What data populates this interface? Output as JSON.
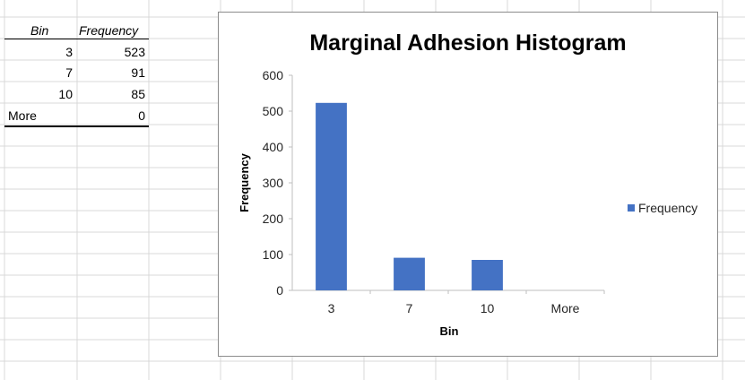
{
  "table": {
    "headers": {
      "bin": "Bin",
      "frequency": "Frequency"
    },
    "rows": [
      {
        "bin": "3",
        "frequency": "523"
      },
      {
        "bin": "7",
        "frequency": "91"
      },
      {
        "bin": "10",
        "frequency": "85"
      },
      {
        "bin": "More",
        "frequency": "0"
      }
    ]
  },
  "colors": {
    "bar": "#4472c4",
    "gridline": "#d9d9d9",
    "chart_border": "#8c8c8c"
  },
  "chart_data": {
    "type": "bar",
    "title": "Marginal Adhesion Histogram",
    "xlabel": "Bin",
    "ylabel": "Frequency",
    "categories": [
      "3",
      "7",
      "10",
      "More"
    ],
    "series": [
      {
        "name": "Frequency",
        "values": [
          523,
          91,
          85,
          0
        ]
      }
    ],
    "ylim": [
      0,
      600
    ],
    "yticks": [
      "0",
      "100",
      "200",
      "300",
      "400",
      "500",
      "600"
    ],
    "grid": false,
    "legend": "right"
  }
}
